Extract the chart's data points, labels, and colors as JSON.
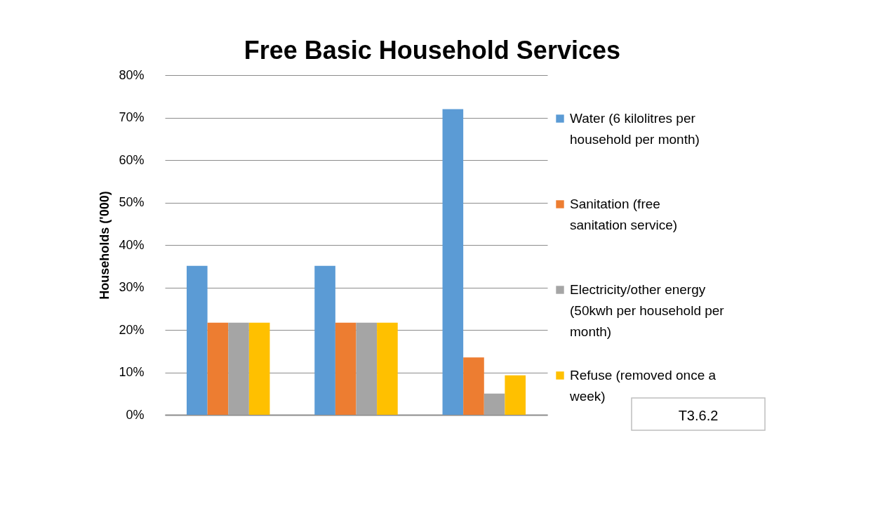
{
  "chart_data": {
    "type": "bar",
    "title": "Free Basic Household Services",
    "ylabel": "Households  ('000)",
    "categories": [
      null,
      null,
      null
    ],
    "series": [
      {
        "name": "Water (6 kilolitres per household per month)",
        "color": "#5b9bd5",
        "values": [
          35.1,
          35.1,
          72
        ]
      },
      {
        "name": "Sanitation (free sanitation service)",
        "color": "#ed7d31",
        "values": [
          21.7,
          21.7,
          13.5
        ]
      },
      {
        "name": "Electricity/other energy (50kwh per household per month)",
        "color": "#a5a5a5",
        "values": [
          21.7,
          21.7,
          5
        ]
      },
      {
        "name": "Refuse (removed once a week)",
        "color": "#ffc000",
        "values": [
          21.7,
          21.7,
          9.3
        ]
      }
    ],
    "ylim": [
      0,
      80
    ],
    "yticks": [
      {
        "value": 0,
        "label": "0%"
      },
      {
        "value": 10,
        "label": "10%"
      },
      {
        "value": 20,
        "label": "20%"
      },
      {
        "value": 30,
        "label": "30%"
      },
      {
        "value": 40,
        "label": "40%"
      },
      {
        "value": 50,
        "label": "50%"
      },
      {
        "value": 60,
        "label": "60%"
      },
      {
        "value": 70,
        "label": "70%"
      },
      {
        "value": 80,
        "label": "80%"
      }
    ],
    "grid": "y",
    "legend": "right",
    "tick_labels": "y",
    "annotations": [
      "T3.6.2"
    ]
  }
}
